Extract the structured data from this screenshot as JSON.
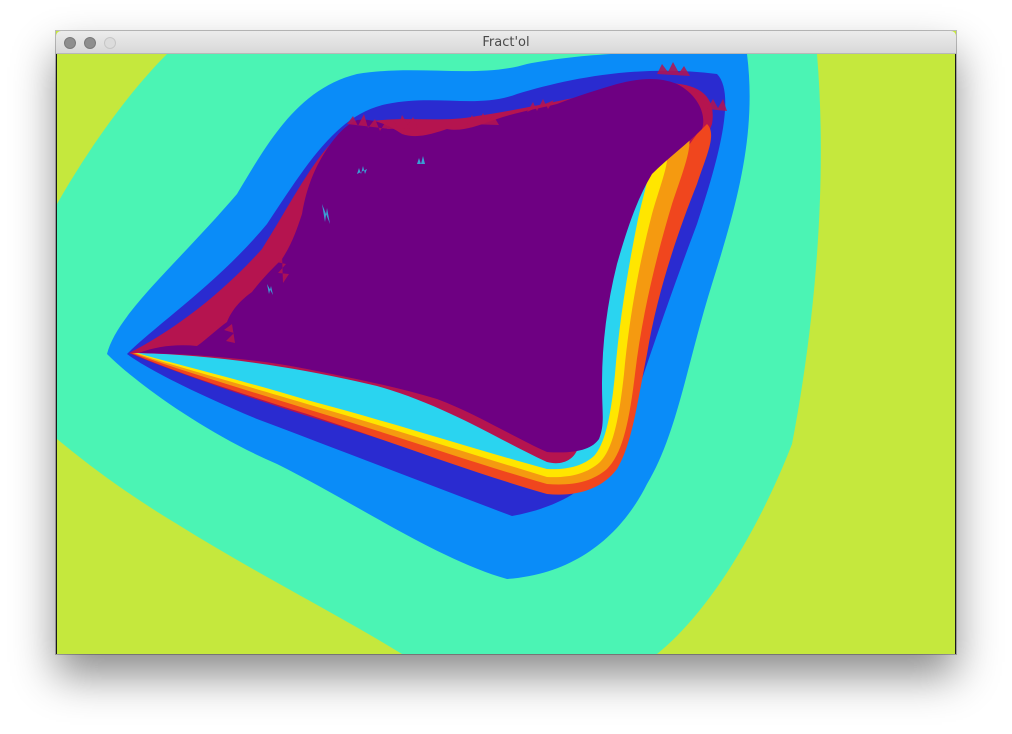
{
  "window": {
    "title": "Fract'ol",
    "controls": [
      "close-icon",
      "minimize-icon",
      "zoom-icon"
    ]
  },
  "fractal": {
    "palette": {
      "outer": "#c5e83d",
      "ring1": "#4bf4b4",
      "ring2": "#0a8cf8",
      "ring3": "#2a2bd0",
      "ring4": "#b5144f",
      "ring5": "#f0461e",
      "ring6": "#f59a10",
      "ring7": "#ffe600",
      "ring8": "#2ad4f0",
      "inner": "#6e0082"
    }
  }
}
